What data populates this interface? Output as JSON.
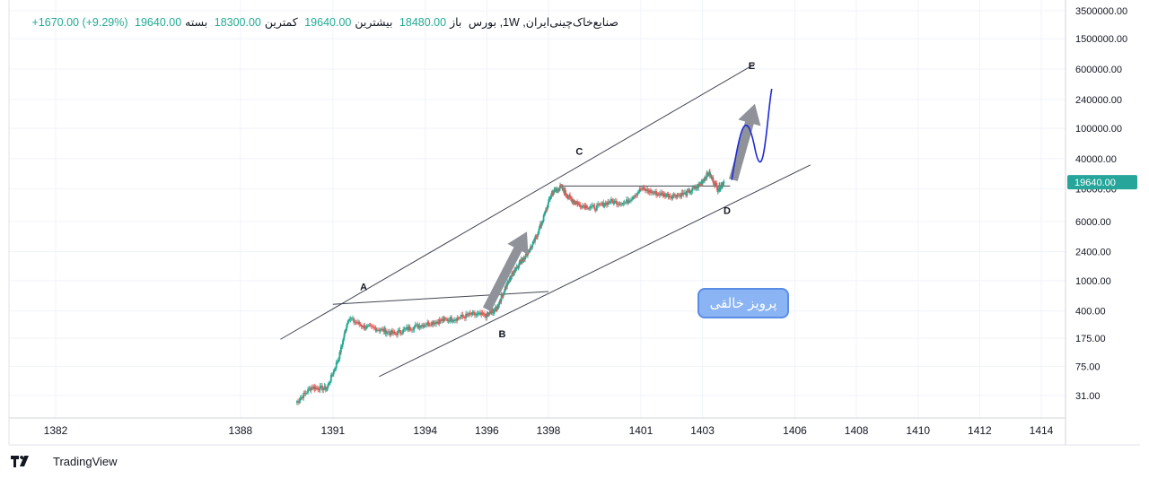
{
  "legend": {
    "symbol": "صنایع‌خاک‌چینی‌ایران, 1W, بورس",
    "open_label": "باز",
    "open_value": "18480.00",
    "high_label": "بیشترین",
    "high_value": "19640.00",
    "low_label": "کمترین",
    "low_value": "18300.00",
    "close_label": "بسته",
    "close_value": "19640.00",
    "change": "+1670.00 (+9.29%)"
  },
  "watermark": "پرویز خالقی",
  "footer": {
    "brand": "TradingView"
  },
  "colors": {
    "up": "#22ab94",
    "down": "#ef5350",
    "badge": "#8ab4f3",
    "curve": "#1e2bd6",
    "arrow": "#8f9299"
  },
  "chart_data": {
    "type": "line",
    "title": "",
    "x_ticks": [
      "1382",
      "1388",
      "1391",
      "1394",
      "1396",
      "1398",
      "1401",
      "1403",
      "1406",
      "1408",
      "1410",
      "1412",
      "1414"
    ],
    "y_ticks": [
      "3500000.00",
      "1500000.00",
      "600000.00",
      "240000.00",
      "100000.00",
      "40000.00",
      "16000.00",
      "6000.00",
      "2400.00",
      "1000.00",
      "400.00",
      "175.00",
      "75.00",
      "31.00"
    ],
    "y_scale": "log",
    "last_price": "19640.00",
    "series": [
      {
        "x": [
          1389.8,
          1390.3,
          1390.8,
          1391.2,
          1391.5,
          1392.0,
          1392.5,
          1393.0,
          1393.5,
          1394.0,
          1394.5,
          1395.0,
          1395.5,
          1396.0,
          1396.3,
          1396.6,
          1396.9,
          1397.2,
          1397.5,
          1397.8,
          1398.1,
          1398.4,
          1398.7,
          1399.0,
          1399.5,
          1400.0,
          1400.5,
          1401.0,
          1401.5,
          1402.0,
          1402.5,
          1402.9,
          1403.2,
          1403.5,
          1403.7
        ],
        "y": [
          25,
          40,
          38,
          100,
          320,
          250,
          230,
          200,
          240,
          270,
          300,
          320,
          360,
          350,
          420,
          800,
          1400,
          2000,
          3000,
          6000,
          14000,
          17000,
          12000,
          10000,
          9000,
          11000,
          10500,
          16000,
          14000,
          13000,
          14000,
          18000,
          26000,
          16000,
          19640
        ]
      }
    ],
    "annotations": [
      {
        "label": "A",
        "x": 1392.0,
        "y": 750
      },
      {
        "label": "B",
        "x": 1396.5,
        "y": 180
      },
      {
        "label": "C",
        "x": 1399.0,
        "y": 45000
      },
      {
        "label": "D",
        "x": 1403.8,
        "y": 7500
      },
      {
        "label": "E",
        "x": 1404.6,
        "y": 600000
      }
    ]
  }
}
